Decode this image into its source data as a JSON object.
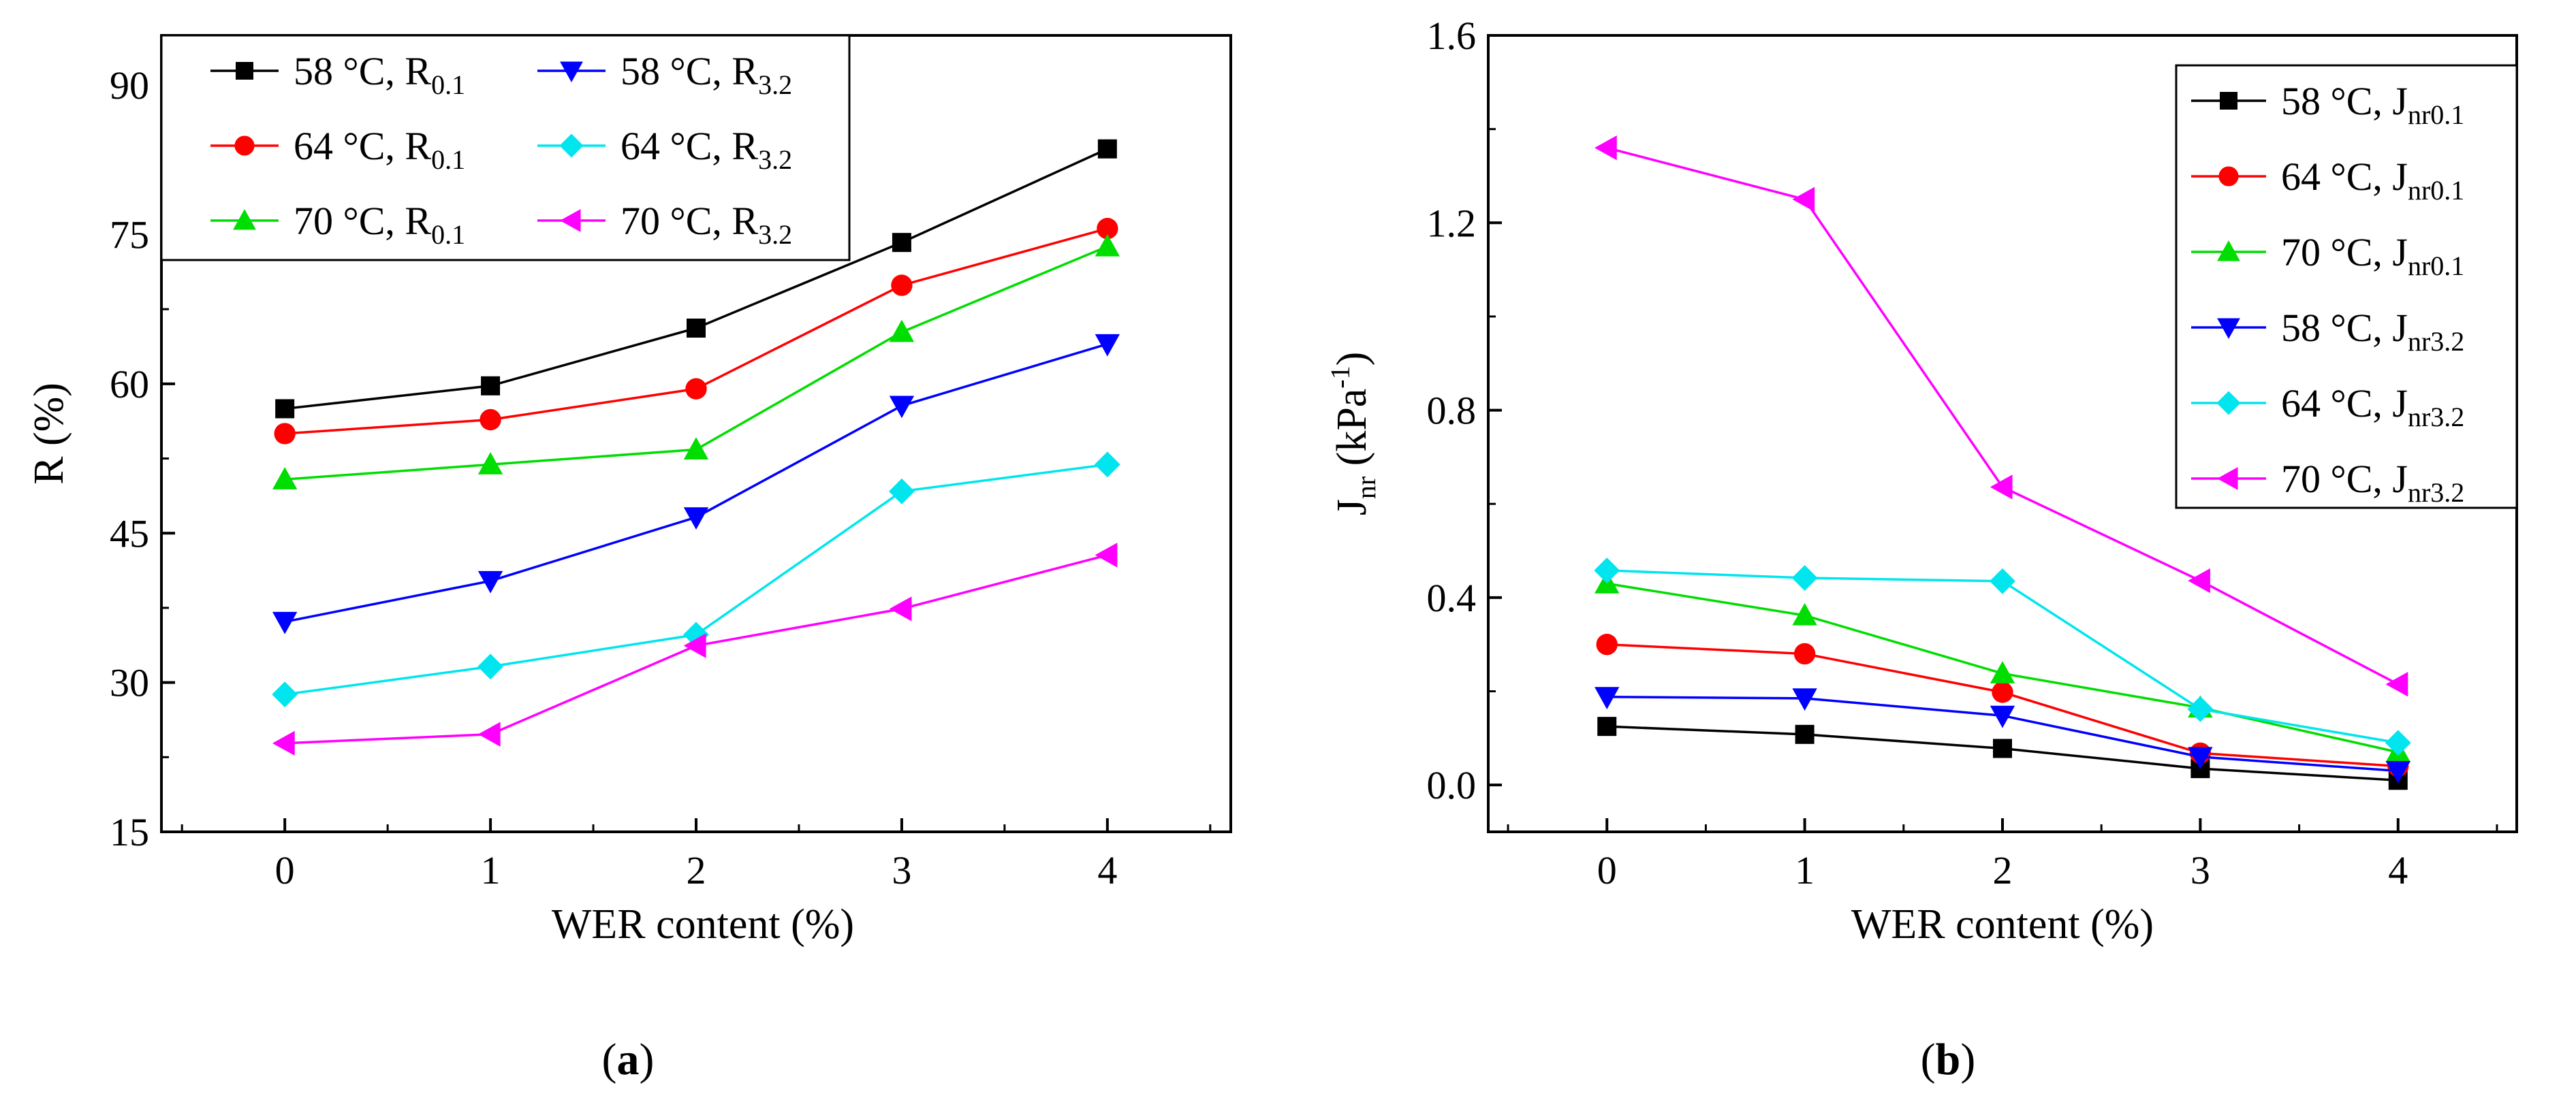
{
  "chart_data": [
    {
      "type": "line",
      "panel_label": "a",
      "title": "",
      "xlabel": "WER content (%)",
      "ylabel": "R (%)",
      "x": [
        0,
        1,
        2,
        3,
        4
      ],
      "xlim": [
        -0.6,
        4.6
      ],
      "ylim": [
        15,
        95
      ],
      "xticks": [
        0,
        1,
        2,
        3,
        4
      ],
      "yticks": [
        15,
        30,
        45,
        60,
        75,
        90
      ],
      "grid": false,
      "legend_placement": "top-left",
      "legend_columns": 2,
      "series": [
        {
          "name": "58 °C, R0.1",
          "label_main": "58 °C, R",
          "label_sub": "0.1",
          "color": "#000000",
          "marker": "square",
          "values": [
            57.5,
            59.8,
            65.6,
            74.2,
            83.6
          ]
        },
        {
          "name": "64 °C, R0.1",
          "label_main": "64 °C, R",
          "label_sub": "0.1",
          "color": "#ff0000",
          "marker": "circle",
          "values": [
            55.0,
            56.4,
            59.5,
            69.9,
            75.6
          ]
        },
        {
          "name": "70 °C, R0.1",
          "label_main": "70 °C, R",
          "label_sub": "0.1",
          "color": "#00dd00",
          "marker": "triangle-up",
          "values": [
            50.4,
            51.9,
            53.4,
            65.2,
            73.8
          ]
        },
        {
          "name": "58 °C, R3.2",
          "label_main": "58 °C, R",
          "label_sub": "3.2",
          "color": "#0000ff",
          "marker": "triangle-down",
          "values": [
            36.1,
            40.2,
            46.6,
            57.8,
            64.0
          ]
        },
        {
          "name": "64 °C, R3.2",
          "label_main": "64 °C, R",
          "label_sub": "3.2",
          "color": "#00e5ee",
          "marker": "diamond",
          "values": [
            28.8,
            31.6,
            34.8,
            49.2,
            51.9
          ]
        },
        {
          "name": "70 °C, R3.2",
          "label_main": "70 °C, R",
          "label_sub": "3.2",
          "color": "#ff00ff",
          "marker": "triangle-left",
          "values": [
            23.9,
            24.8,
            33.7,
            37.4,
            42.8
          ]
        }
      ]
    },
    {
      "type": "line",
      "panel_label": "b",
      "title": "",
      "xlabel": "WER content (%)",
      "ylabel_main": "J",
      "ylabel_sub": "nr",
      "ylabel_unit": " (kPa",
      "ylabel_sup": "-1",
      "ylabel_close": ")",
      "x": [
        0,
        1,
        2,
        3,
        4
      ],
      "xlim": [
        -0.6,
        4.6
      ],
      "ylim": [
        -0.1,
        1.6
      ],
      "xticks": [
        0,
        1,
        2,
        3,
        4
      ],
      "yticks": [
        0.0,
        0.4,
        0.8,
        1.2,
        1.6
      ],
      "ytick_labels": [
        "0.0",
        "0.4",
        "0.8",
        "1.2",
        "1.6"
      ],
      "grid": false,
      "legend_placement": "top-right",
      "legend_columns": 1,
      "series": [
        {
          "name": "58 °C, Jnr0.1",
          "label_main": "58 °C, J",
          "label_sub": "nr0.1",
          "color": "#000000",
          "marker": "square",
          "values": [
            0.125,
            0.108,
            0.078,
            0.035,
            0.01
          ]
        },
        {
          "name": "64 °C, Jnr0.1",
          "label_main": "64 °C, J",
          "label_sub": "nr0.1",
          "color": "#ff0000",
          "marker": "circle",
          "values": [
            0.3,
            0.28,
            0.198,
            0.068,
            0.04
          ]
        },
        {
          "name": "70 °C, Jnr0.1",
          "label_main": "70 °C, J",
          "label_sub": "nr0.1",
          "color": "#00dd00",
          "marker": "triangle-up",
          "values": [
            0.43,
            0.362,
            0.238,
            0.165,
            0.07
          ]
        },
        {
          "name": "58 °C, Jnr3.2",
          "label_main": "58 °C, J",
          "label_sub": "nr3.2",
          "color": "#0000ff",
          "marker": "triangle-down",
          "values": [
            0.188,
            0.185,
            0.148,
            0.06,
            0.03
          ]
        },
        {
          "name": "64 °C, Jnr3.2",
          "label_main": "64 °C, J",
          "label_sub": "nr3.2",
          "color": "#00e5ee",
          "marker": "diamond",
          "values": [
            0.458,
            0.442,
            0.435,
            0.162,
            0.09
          ]
        },
        {
          "name": "70 °C, Jnr3.2",
          "label_main": "70 °C, J",
          "label_sub": "nr3.2",
          "color": "#ff00ff",
          "marker": "triangle-left",
          "values": [
            1.36,
            1.25,
            0.636,
            0.436,
            0.215
          ]
        }
      ]
    }
  ]
}
